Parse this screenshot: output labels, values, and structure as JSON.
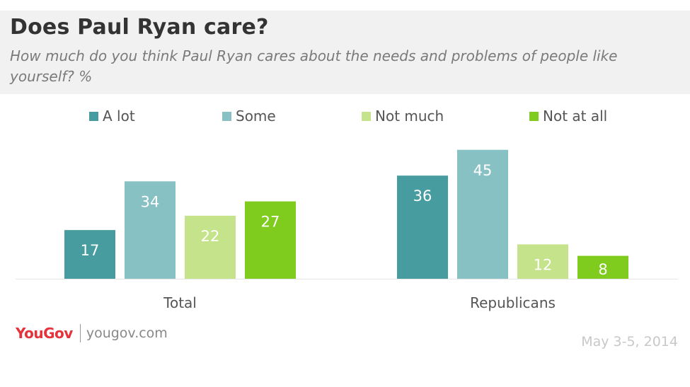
{
  "header": {
    "title": "Does Paul Ryan care?",
    "subtitle": "How much do you think Paul Ryan cares about the needs and problems of people like yourself? %"
  },
  "footer": {
    "brand": "YouGov",
    "url": "yougov.com",
    "date": "May 3-5, 2014"
  },
  "chart_data": {
    "type": "bar",
    "categories": [
      "Total",
      "Republicans"
    ],
    "series": [
      {
        "name": "A lot",
        "color": "#469c9e",
        "values": [
          17,
          36
        ]
      },
      {
        "name": "Some",
        "color": "#88c1c3",
        "values": [
          34,
          45
        ]
      },
      {
        "name": "Not much",
        "color": "#c5e38a",
        "values": [
          22,
          12
        ]
      },
      {
        "name": "Not at all",
        "color": "#7fcb1e",
        "values": [
          27,
          8
        ]
      }
    ],
    "ylim": [
      0,
      50
    ],
    "grid": false,
    "legend": "top",
    "data_labels": true
  }
}
